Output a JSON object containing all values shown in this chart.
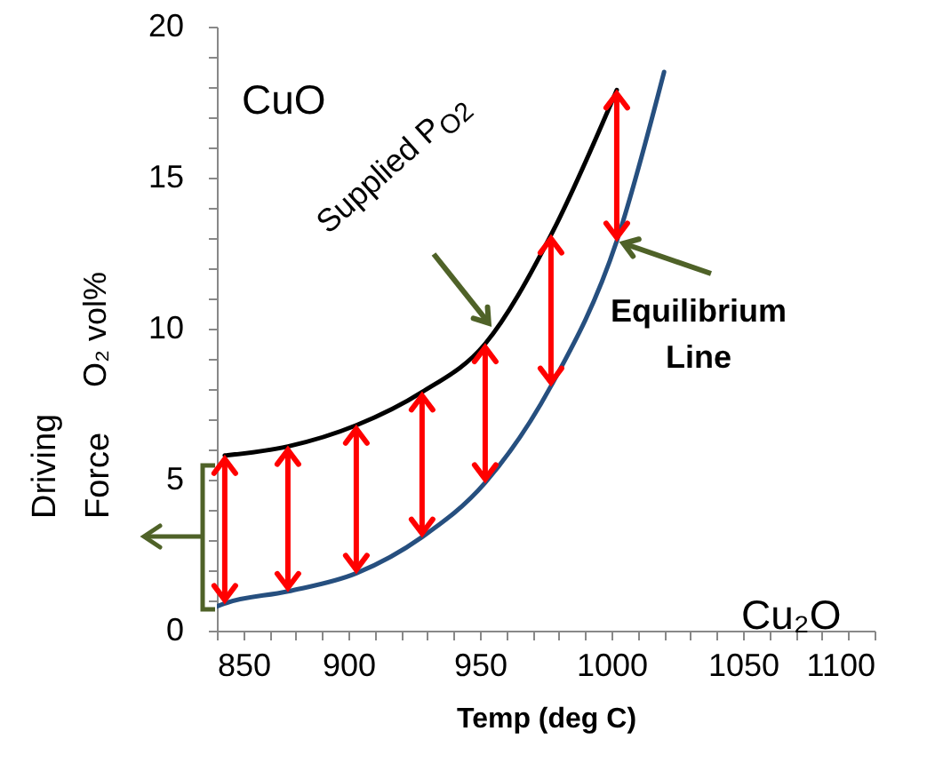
{
  "chart_data": {
    "type": "line",
    "xlabel": "Temp (deg C)",
    "ylabel": "O₂ vol%",
    "annotations": [
      "CuO",
      "Cu₂O",
      {
        "text": "Supplied P$_{O2}$",
        "x": 955,
        "y": 10
      },
      {
        "text": "Equilibrium Line",
        "x": 1002,
        "y": 12.9
      },
      "Driving",
      "Force"
    ],
    "series": [
      {
        "color": "#000000",
        "x": [
          853,
          877,
          903,
          928,
          952,
          977,
          1002
        ],
        "values": [
          5.8,
          6.1,
          6.8,
          7.9,
          9.5,
          13.1,
          17.9
        ]
      },
      {
        "color": "#264f7f",
        "x": [
          850,
          853,
          877,
          903,
          928,
          952,
          977,
          1002,
          1020
        ],
        "values": [
          0.8,
          0.9,
          1.3,
          1.9,
          3.1,
          4.9,
          8.1,
          12.9,
          18.5
        ]
      }
    ],
    "xlim": [
      850,
      1100
    ],
    "ylim": [
      0,
      20
    ],
    "xticks": [
      850,
      {
        "value": 860,
        "label": null
      },
      {
        "value": 870,
        "label": null
      },
      {
        "value": 880,
        "label": null
      },
      {
        "value": 890,
        "label": null
      },
      900,
      {
        "value": 910,
        "label": null
      },
      {
        "value": 920,
        "label": null
      },
      {
        "value": 930,
        "label": null
      },
      {
        "value": 940,
        "label": null
      },
      950,
      {
        "value": 960,
        "label": null
      },
      {
        "value": 970,
        "label": null
      },
      {
        "value": 980,
        "label": null
      },
      {
        "value": 990,
        "label": null
      },
      1000,
      {
        "value": 1010,
        "label": null
      },
      {
        "value": 1020,
        "label": null
      },
      {
        "value": 1030,
        "label": null
      },
      {
        "value": 1040,
        "label": null
      },
      1050,
      {
        "value": 1060,
        "label": null
      },
      {
        "value": 1070,
        "label": null
      },
      {
        "value": 1080,
        "label": null
      },
      {
        "value": 1090,
        "label": null
      },
      1100
    ],
    "yticks": [
      0,
      {
        "value": 1,
        "label": null
      },
      {
        "value": 2,
        "label": null
      },
      {
        "value": 3,
        "label": null
      },
      {
        "value": 4,
        "label": null
      },
      5,
      {
        "value": 6,
        "label": null
      },
      {
        "value": 7,
        "label": null
      },
      {
        "value": 8,
        "label": null
      },
      {
        "value": 9,
        "label": null
      },
      10,
      {
        "value": 11,
        "label": null
      },
      {
        "value": 12,
        "label": null
      },
      {
        "value": 13,
        "label": null
      },
      {
        "value": 14,
        "label": null
      },
      15,
      {
        "value": 16,
        "label": null
      },
      {
        "value": 17,
        "label": null
      },
      {
        "value": 18,
        "label": null
      },
      {
        "value": 19,
        "label": null
      },
      20
    ],
    "grid": false,
    "marker": "none",
    "line_style": "solid"
  }
}
